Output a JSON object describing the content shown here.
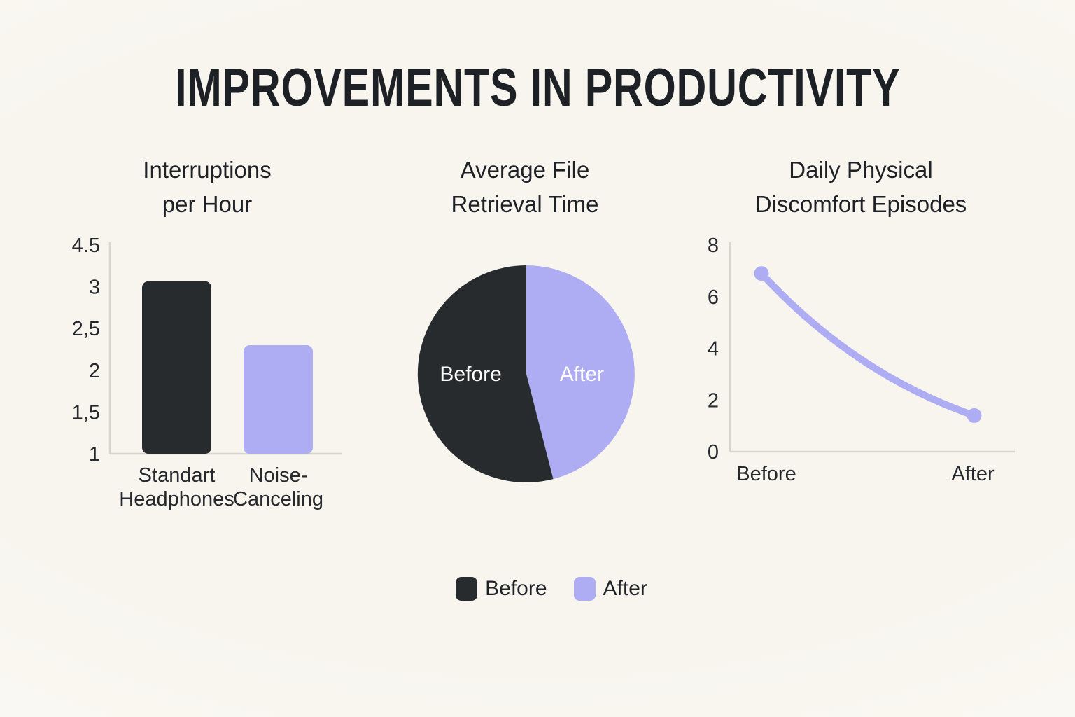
{
  "title": "IMPROVEMENTS IN PRODUCTIVITY",
  "colors": {
    "before": "#282b2e",
    "after": "#aeacf2",
    "axis": "#d8d5d0",
    "text": "#1e2126",
    "pie_label": "#ffffff",
    "background": "#f8f5ef"
  },
  "legend": {
    "items": [
      {
        "label": "Before",
        "color_key": "before"
      },
      {
        "label": "After",
        "color_key": "after"
      }
    ]
  },
  "chart_data": [
    {
      "type": "bar",
      "title_lines": [
        "Interruptions",
        "per Hour"
      ],
      "y_ticks": [
        "4.5",
        "3",
        "2,5",
        "2",
        "1,5",
        "1"
      ],
      "y_tick_values": [
        4.5,
        3,
        2.5,
        2,
        1.5,
        1
      ],
      "grid": false,
      "bars": [
        {
          "category_lines": [
            "Standart",
            "Headphones"
          ],
          "series": "Before",
          "value": 3.2,
          "color_key": "before"
        },
        {
          "category_lines": [
            "Noise-",
            "Canceling"
          ],
          "series": "After",
          "value": 2.3,
          "color_key": "after"
        }
      ]
    },
    {
      "type": "pie",
      "title_lines": [
        "Average File",
        "Retrieval Time"
      ],
      "slices": [
        {
          "label": "Before",
          "pct": 54,
          "color_key": "before"
        },
        {
          "label": "After",
          "pct": 46,
          "color_key": "after"
        }
      ],
      "start_angle_deg": 0,
      "legend_position": "bottom"
    },
    {
      "type": "line",
      "title_lines": [
        "Daily Physical",
        "Discomfort Episodes"
      ],
      "x": [
        "Before",
        "After"
      ],
      "values": [
        6.9,
        1.4
      ],
      "y_ticks": [
        "8",
        "6",
        "4",
        "2",
        "0"
      ],
      "ylim": [
        0,
        8
      ],
      "grid": false
    }
  ]
}
